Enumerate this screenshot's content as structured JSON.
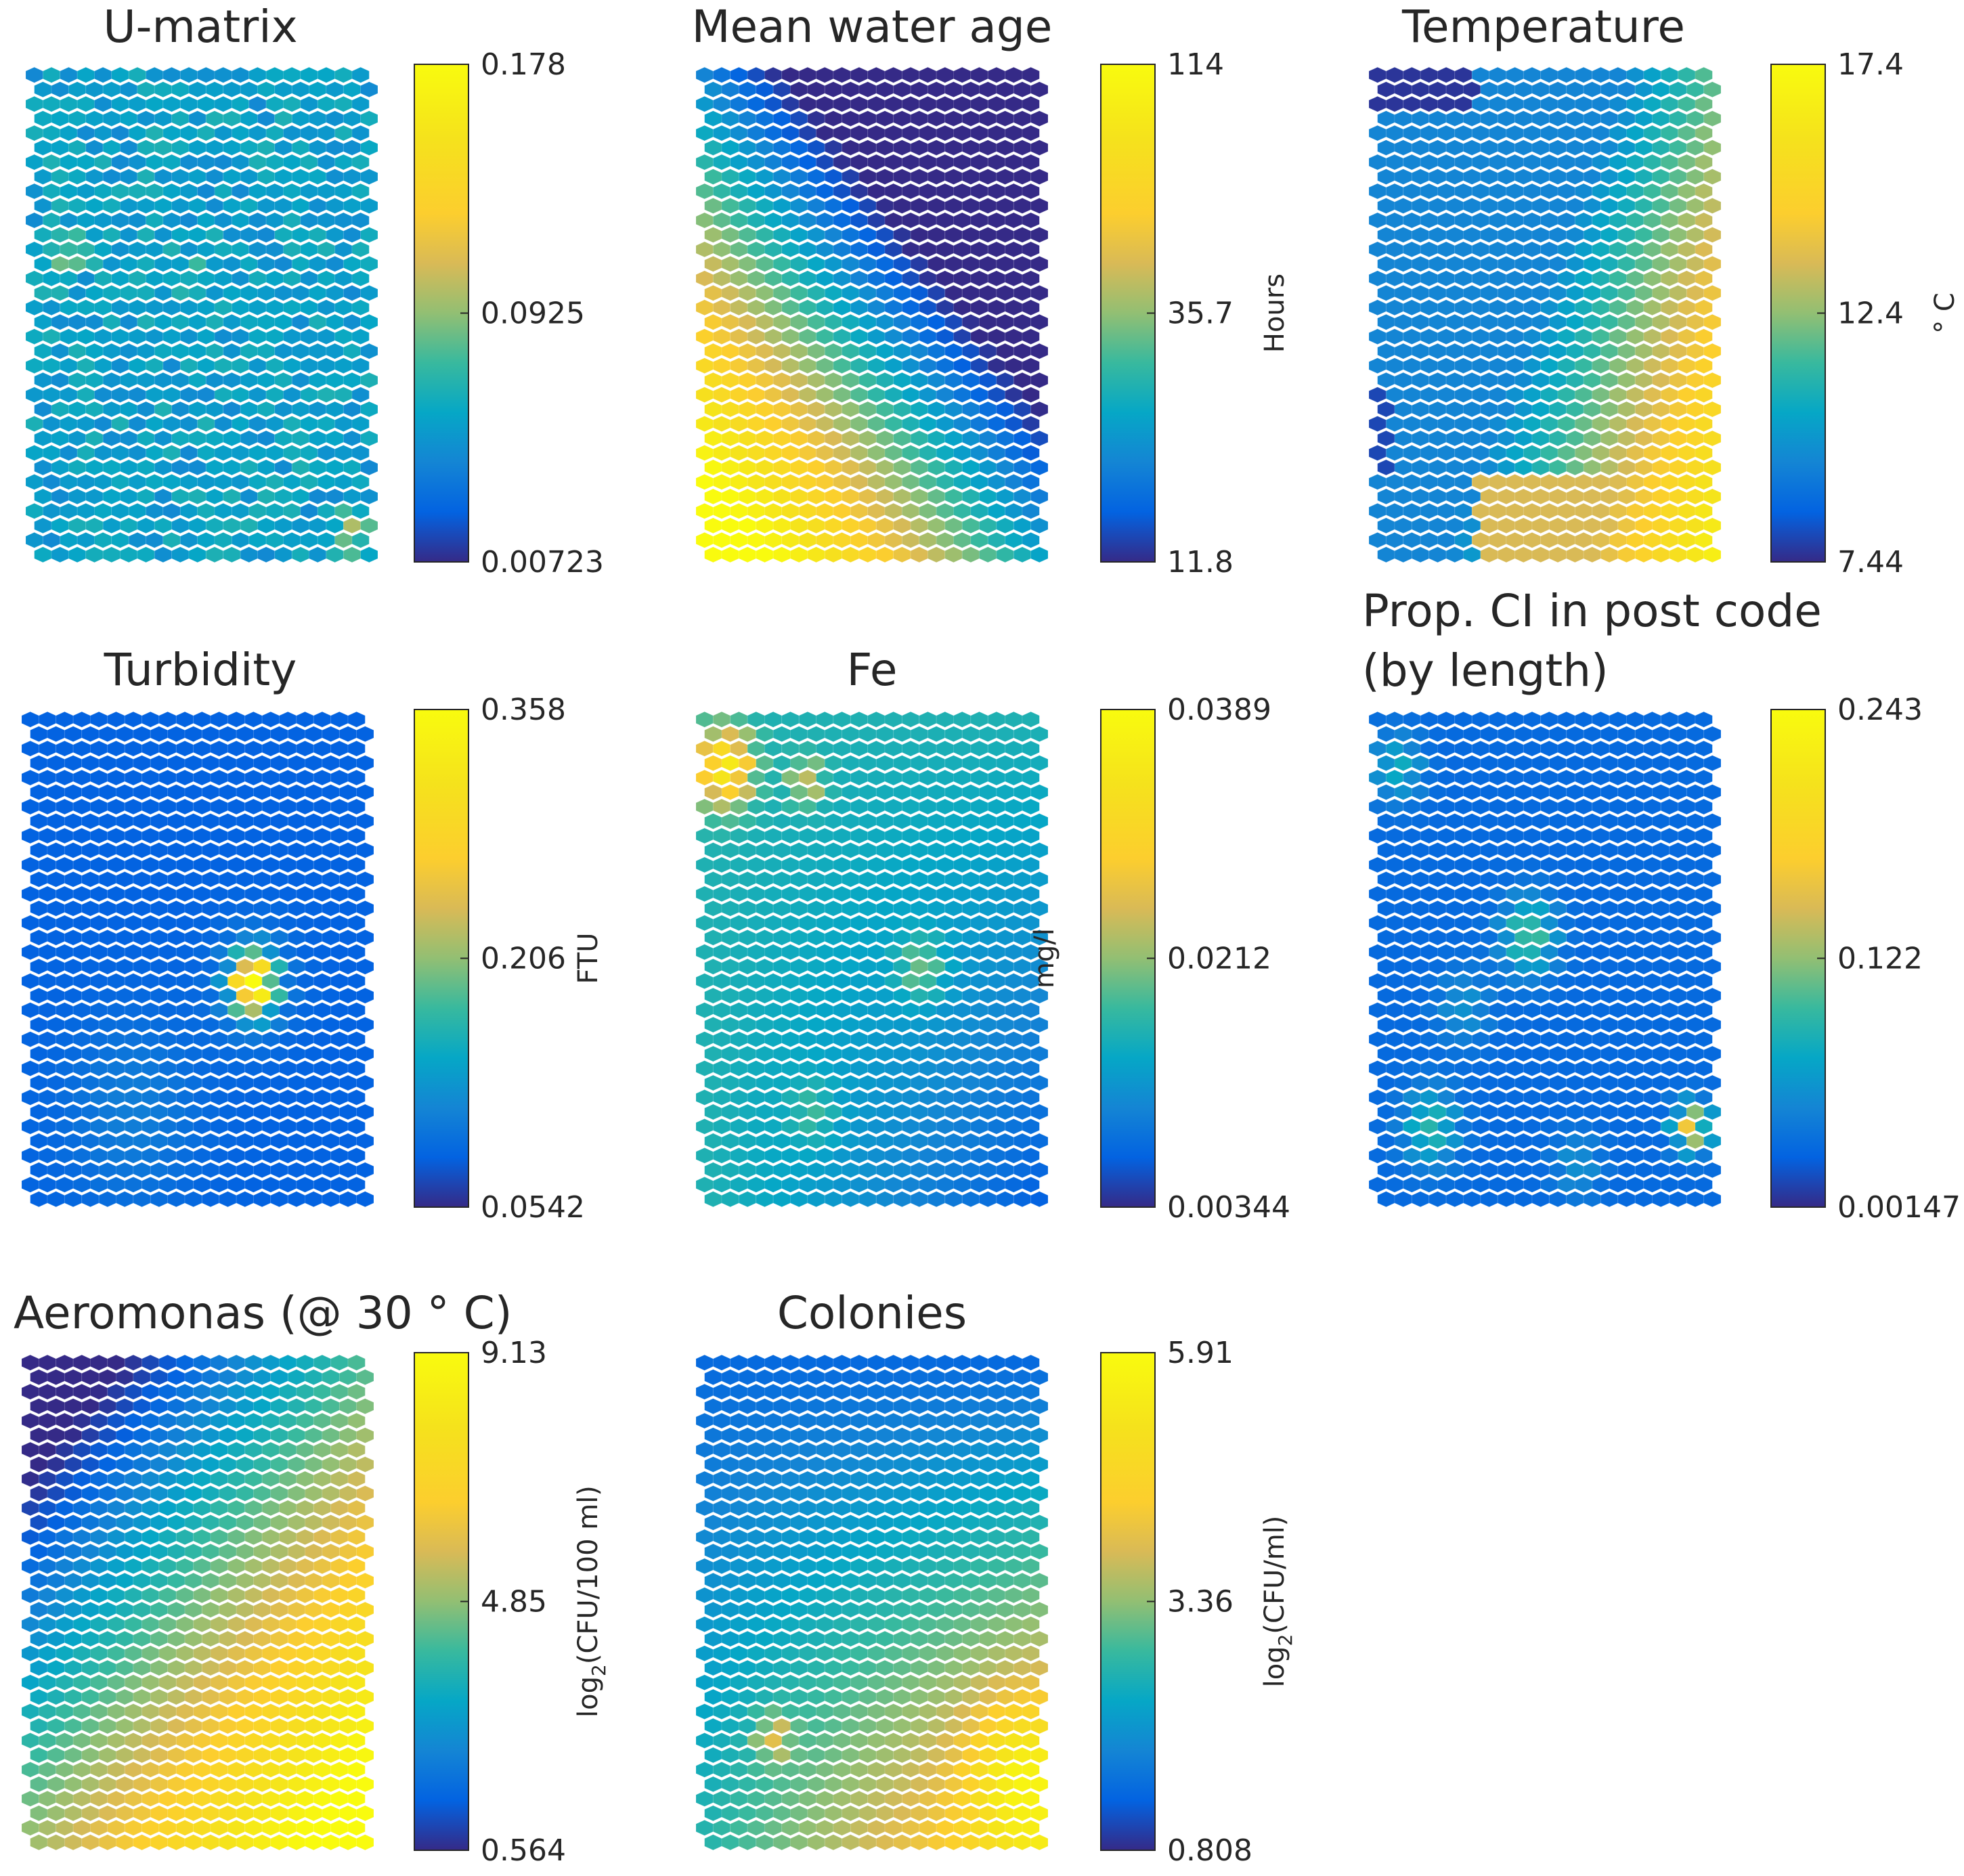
{
  "figure": {
    "description_free": true
  },
  "chart_data": [
    {
      "id": "umatrix",
      "type": "heatmap",
      "title": "U-matrix",
      "title_line2": "",
      "unit": "",
      "unit_sub": "",
      "unit_post": "",
      "cmin": 0.00723,
      "cmax": 0.178,
      "ticks": [
        "0.178",
        "0.0925",
        "0.00723"
      ],
      "grid": {
        "rows": 34,
        "cols": 20
      },
      "pattern": "umatrix"
    },
    {
      "id": "water-age",
      "type": "heatmap",
      "title": "Mean water age",
      "title_line2": "",
      "unit": "Hours",
      "unit_sub": "",
      "unit_post": "",
      "cmin": 11.8,
      "cmax": 114,
      "ticks": [
        "114",
        "35.7",
        "11.8"
      ],
      "grid": {
        "rows": 34,
        "cols": 20
      },
      "pattern": "waterage"
    },
    {
      "id": "temperature",
      "type": "heatmap",
      "title": "Temperature",
      "title_line2": "",
      "unit": "° C",
      "unit_sub": "",
      "unit_post": "",
      "cmin": 7.44,
      "cmax": 17.4,
      "ticks": [
        "17.4",
        "12.4",
        "7.44"
      ],
      "grid": {
        "rows": 34,
        "cols": 20
      },
      "pattern": "temperature"
    },
    {
      "id": "turbidity",
      "type": "heatmap",
      "title": "Turbidity",
      "title_line2": "",
      "unit": "FTU",
      "unit_sub": "",
      "unit_post": "",
      "cmin": 0.0542,
      "cmax": 0.358,
      "ticks": [
        "0.358",
        "0.206",
        "0.0542"
      ],
      "grid": {
        "rows": 34,
        "cols": 20
      },
      "pattern": "turbidity"
    },
    {
      "id": "fe",
      "type": "heatmap",
      "title": "Fe",
      "title_line2": "",
      "unit": "mg/l",
      "unit_sub": "",
      "unit_post": "",
      "cmin": 0.00344,
      "cmax": 0.0389,
      "ticks": [
        "0.0389",
        "0.0212",
        "0.00344"
      ],
      "grid": {
        "rows": 34,
        "cols": 20
      },
      "pattern": "fe"
    },
    {
      "id": "prop-ci",
      "type": "heatmap",
      "title": "Prop. CI in post code",
      "title_line2": "(by length)",
      "unit": "",
      "unit_sub": "",
      "unit_post": "",
      "cmin": 0.00147,
      "cmax": 0.243,
      "ticks": [
        "0.243",
        "0.122",
        "0.00147"
      ],
      "grid": {
        "rows": 34,
        "cols": 20
      },
      "pattern": "propci"
    },
    {
      "id": "aeromonas",
      "type": "heatmap",
      "title": "Aeromonas (@ 30 ° C)",
      "title_line2": "",
      "unit": "log",
      "unit_sub": "2",
      "unit_post": "(CFU/100 ml)",
      "cmin": 0.564,
      "cmax": 9.13,
      "ticks": [
        "9.13",
        "4.85",
        "0.564"
      ],
      "grid": {
        "rows": 34,
        "cols": 20
      },
      "pattern": "aeromonas"
    },
    {
      "id": "colonies",
      "type": "heatmap",
      "title": "Colonies",
      "title_line2": "",
      "unit": "log",
      "unit_sub": "2",
      "unit_post": "(CFU/ml)",
      "cmin": 0.808,
      "cmax": 5.91,
      "ticks": [
        "5.91",
        "3.36",
        "0.808"
      ],
      "grid": {
        "rows": 34,
        "cols": 20
      },
      "pattern": "colonies"
    }
  ]
}
